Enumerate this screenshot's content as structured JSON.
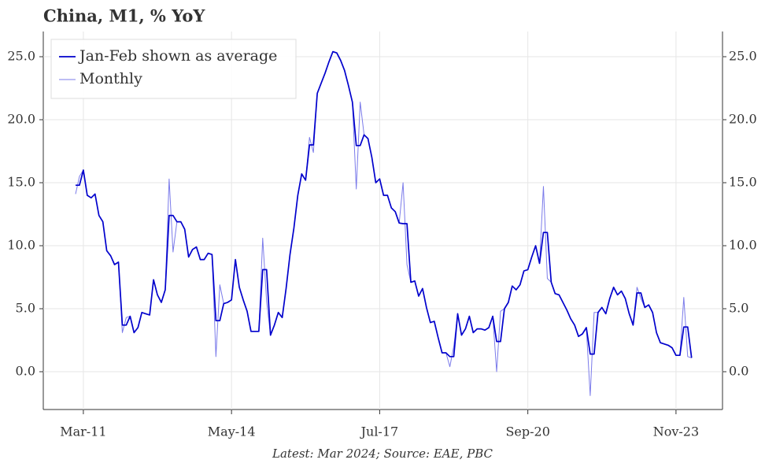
{
  "chart_data": {
    "type": "line",
    "title": "China, M1, % YoY",
    "footnote": "Latest: Mar 2024; Source: EAE, PBC",
    "categories": [
      null,
      null,
      "Mar-11",
      null,
      null,
      null,
      null,
      null,
      null,
      null,
      null,
      null,
      null,
      null,
      null,
      null,
      null,
      null,
      null,
      null,
      null,
      null,
      null,
      null,
      null,
      null,
      null,
      null,
      null,
      null,
      null,
      null,
      null,
      null,
      null,
      null,
      null,
      null,
      null,
      null,
      "May-14",
      null,
      null,
      null,
      null,
      null,
      null,
      null,
      null,
      null,
      null,
      null,
      null,
      null,
      null,
      null,
      null,
      null,
      null,
      null,
      null,
      null,
      null,
      null,
      null,
      null,
      null,
      null,
      null,
      null,
      null,
      null,
      null,
      null,
      null,
      null,
      null,
      null,
      "Jul-17",
      null,
      null,
      null,
      null,
      null,
      null,
      null,
      null,
      null,
      null,
      null,
      null,
      null,
      null,
      null,
      null,
      null,
      null,
      null,
      null,
      null,
      null,
      null,
      null,
      null,
      null,
      null,
      null,
      null,
      null,
      null,
      null,
      null,
      null,
      null,
      null,
      null,
      "Sep-20",
      null,
      null,
      null,
      null,
      null,
      null,
      null,
      null,
      null,
      null,
      null,
      null,
      null,
      null,
      null,
      null,
      null,
      null,
      null,
      null,
      null,
      null,
      null,
      null,
      null,
      null,
      null,
      null,
      null,
      null,
      null,
      null,
      null,
      null,
      null,
      null,
      null,
      "Nov-23",
      null,
      null,
      null,
      null
    ],
    "series": [
      {
        "name": "Monthly",
        "color": "#7b7bea",
        "values": [
          14.1,
          15.5,
          16.0,
          14.0,
          13.8,
          14.1,
          12.4,
          11.9,
          9.6,
          9.2,
          8.5,
          8.7,
          3.1,
          4.3,
          4.4,
          3.1,
          3.5,
          4.7,
          4.6,
          4.5,
          7.3,
          6.1,
          5.5,
          6.5,
          15.3,
          9.5,
          11.9,
          11.9,
          11.3,
          9.1,
          9.7,
          9.9,
          8.9,
          8.9,
          9.4,
          9.3,
          1.2,
          6.9,
          5.4,
          5.5,
          5.7,
          8.9,
          6.7,
          5.7,
          4.8,
          3.2,
          3.2,
          3.2,
          10.6,
          5.6,
          2.9,
          3.7,
          4.7,
          4.3,
          6.6,
          9.3,
          11.4,
          14.0,
          15.7,
          15.2,
          18.6,
          17.4,
          22.1,
          22.9,
          23.7,
          24.6,
          25.4,
          25.3,
          24.7,
          23.9,
          22.7,
          21.4,
          14.5,
          21.4,
          18.8,
          18.5,
          17.0,
          15.0,
          15.3,
          14.0,
          14.0,
          13.0,
          12.7,
          11.8,
          15.0,
          8.5,
          7.1,
          7.2,
          6.0,
          6.6,
          5.1,
          3.9,
          4.0,
          2.7,
          1.5,
          1.5,
          0.4,
          2.0,
          4.6,
          2.9,
          3.4,
          4.4,
          3.1,
          3.4,
          3.4,
          3.3,
          3.5,
          4.4,
          0.0,
          4.8,
          5.0,
          5.5,
          6.8,
          6.5,
          6.9,
          8.0,
          8.1,
          9.1,
          10.0,
          8.6,
          14.7,
          7.4,
          7.1,
          6.2,
          6.1,
          5.5,
          4.9,
          4.2,
          3.7,
          2.8,
          3.0,
          3.5,
          -1.9,
          4.7,
          4.7,
          5.1,
          4.6,
          5.8,
          6.7,
          6.1,
          6.4,
          5.8,
          4.6,
          3.7,
          6.7,
          5.8,
          5.1,
          5.3,
          4.7,
          3.1,
          2.3,
          2.2,
          2.1,
          1.9,
          1.3,
          1.3,
          5.9,
          1.2,
          1.1
        ]
      },
      {
        "name": "Jan-Feb shown as average",
        "color": "#0000cc",
        "values": [
          14.8,
          14.8,
          16.0,
          14.0,
          13.8,
          14.1,
          12.4,
          11.9,
          9.6,
          9.2,
          8.5,
          8.7,
          3.7,
          3.7,
          4.4,
          3.1,
          3.5,
          4.7,
          4.6,
          4.5,
          7.3,
          6.1,
          5.5,
          6.5,
          12.4,
          12.4,
          11.9,
          11.9,
          11.3,
          9.1,
          9.7,
          9.9,
          8.9,
          8.9,
          9.4,
          9.3,
          4.05,
          4.05,
          5.4,
          5.5,
          5.7,
          8.9,
          6.7,
          5.7,
          4.8,
          3.2,
          3.2,
          3.2,
          8.1,
          8.1,
          2.9,
          3.7,
          4.7,
          4.3,
          6.6,
          9.3,
          11.4,
          14.0,
          15.7,
          15.2,
          18.0,
          18.0,
          22.1,
          22.9,
          23.7,
          24.6,
          25.4,
          25.3,
          24.7,
          23.9,
          22.7,
          21.4,
          17.95,
          17.95,
          18.8,
          18.5,
          17.0,
          15.0,
          15.3,
          14.0,
          14.0,
          13.0,
          12.7,
          11.8,
          11.75,
          11.75,
          7.1,
          7.2,
          6.0,
          6.6,
          5.1,
          3.9,
          4.0,
          2.7,
          1.5,
          1.5,
          1.2,
          1.2,
          4.6,
          2.9,
          3.4,
          4.4,
          3.1,
          3.4,
          3.4,
          3.3,
          3.5,
          4.4,
          2.4,
          2.4,
          5.0,
          5.5,
          6.8,
          6.5,
          6.9,
          8.0,
          8.1,
          9.1,
          10.0,
          8.6,
          11.05,
          11.05,
          7.1,
          6.2,
          6.1,
          5.5,
          4.9,
          4.2,
          3.7,
          2.8,
          3.0,
          3.5,
          1.4,
          1.4,
          4.7,
          5.1,
          4.6,
          5.8,
          6.7,
          6.1,
          6.4,
          5.8,
          4.6,
          3.7,
          6.25,
          6.25,
          5.1,
          5.3,
          4.7,
          3.1,
          2.3,
          2.2,
          2.1,
          1.9,
          1.3,
          1.3,
          3.55,
          3.55,
          1.1
        ]
      }
    ],
    "legend_order": [
      1,
      0
    ],
    "ylim": [
      -3,
      27
    ],
    "yticks": [
      {
        "value": 0,
        "label": "0.0"
      },
      {
        "value": 5,
        "label": "5.0"
      },
      {
        "value": 10,
        "label": "10.0"
      },
      {
        "value": 15,
        "label": "15.0"
      },
      {
        "value": 20,
        "label": "20.0"
      },
      {
        "value": 25,
        "label": "25.0"
      }
    ],
    "grid": true
  }
}
